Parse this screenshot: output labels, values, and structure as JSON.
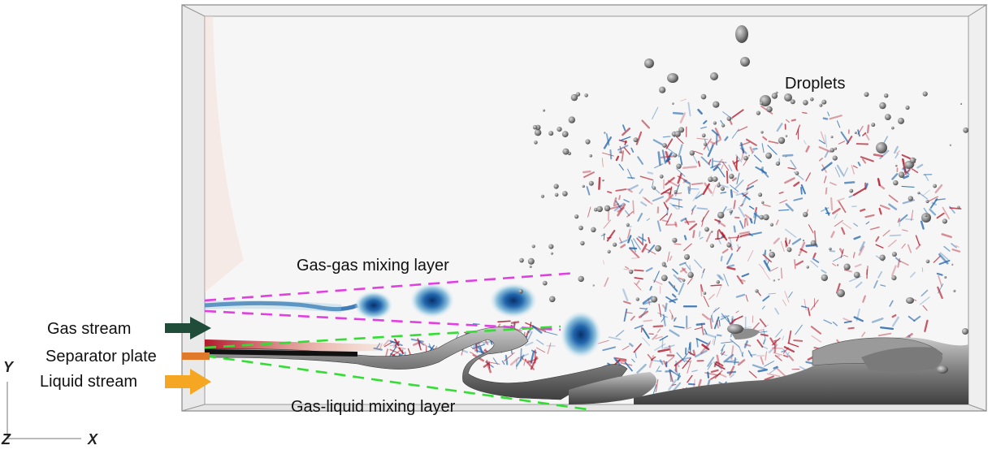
{
  "labels": {
    "gas_gas": "Gas-gas mixing layer",
    "gas_liquid": "Gas-liquid mixing layer",
    "droplets": "Droplets",
    "gas_stream": "Gas stream",
    "separator_plate": "Separator plate",
    "liquid_stream": "Liquid stream"
  },
  "axes": {
    "y": "Y",
    "z": "Z",
    "x": "X"
  },
  "colors": {
    "gas_gas_guide": "#e040e0",
    "gas_liquid_guide": "#33dd33",
    "gas_arrow": "#1f4d3a",
    "liquid_arrow": "#f5a623",
    "separator": "#e07a2a",
    "vortex": "#2166ac",
    "vorticity_pos": "#b2182b",
    "vorticity_neg": "#2166ac",
    "liquid_surface": "#8a8a8a"
  }
}
